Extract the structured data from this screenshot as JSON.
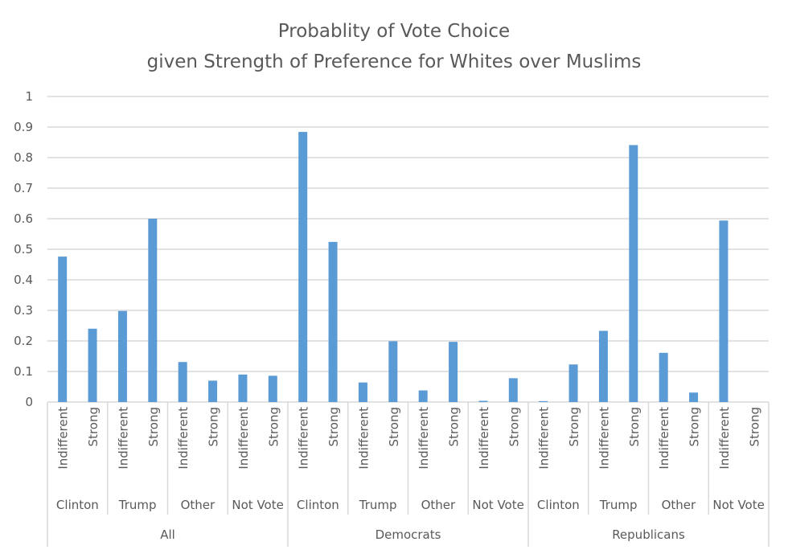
{
  "chart_data": {
    "type": "bar",
    "title": [
      "Probablity of Vote Choice",
      "given Strength of Preference for Whites over Muslims"
    ],
    "xlabel": "",
    "ylabel": "",
    "ylim": [
      0,
      1
    ],
    "yticks": [
      0,
      0.1,
      0.2,
      0.3,
      0.4,
      0.5,
      0.6,
      0.7,
      0.8,
      0.9,
      1
    ],
    "ytick_labels": [
      "0",
      "0.1",
      "0.2",
      "0.3",
      "0.4",
      "0.5",
      "0.6",
      "0.7",
      "0.8",
      "0.9",
      "1"
    ],
    "grid": true,
    "legend": "none",
    "bar_color": "#5b9bd5",
    "groups": [
      {
        "party": "All",
        "outcomes": [
          {
            "outcome": "Clinton",
            "values": [
              {
                "label": "Indifferent",
                "value": 0.476
              },
              {
                "label": "Strong",
                "value": 0.24
              }
            ]
          },
          {
            "outcome": "Trump",
            "values": [
              {
                "label": "Indifferent",
                "value": 0.298
              },
              {
                "label": "Strong",
                "value": 0.6
              }
            ]
          },
          {
            "outcome": "Other",
            "values": [
              {
                "label": "Indifferent",
                "value": 0.131
              },
              {
                "label": "Strong",
                "value": 0.07
              }
            ]
          },
          {
            "outcome": "Not Vote",
            "values": [
              {
                "label": "Indifferent",
                "value": 0.09
              },
              {
                "label": "Strong",
                "value": 0.086
              }
            ]
          }
        ]
      },
      {
        "party": "Democrats",
        "outcomes": [
          {
            "outcome": "Clinton",
            "values": [
              {
                "label": "Indifferent",
                "value": 0.884
              },
              {
                "label": "Strong",
                "value": 0.524
              }
            ]
          },
          {
            "outcome": "Trump",
            "values": [
              {
                "label": "Indifferent",
                "value": 0.064
              },
              {
                "label": "Strong",
                "value": 0.199
              }
            ]
          },
          {
            "outcome": "Other",
            "values": [
              {
                "label": "Indifferent",
                "value": 0.038
              },
              {
                "label": "Strong",
                "value": 0.197
              }
            ]
          },
          {
            "outcome": "Not Vote",
            "values": [
              {
                "label": "Indifferent",
                "value": 0.004
              },
              {
                "label": "Strong",
                "value": 0.078
              }
            ]
          }
        ]
      },
      {
        "party": "Republicans",
        "outcomes": [
          {
            "outcome": "Clinton",
            "values": [
              {
                "label": "Indifferent",
                "value": 0.003
              },
              {
                "label": "Strong",
                "value": 0.123
              }
            ]
          },
          {
            "outcome": "Trump",
            "values": [
              {
                "label": "Indifferent",
                "value": 0.233
              },
              {
                "label": "Strong",
                "value": 0.841
              }
            ]
          },
          {
            "outcome": "Other",
            "values": [
              {
                "label": "Indifferent",
                "value": 0.161
              },
              {
                "label": "Strong",
                "value": 0.031
              }
            ]
          },
          {
            "outcome": "Not Vote",
            "values": [
              {
                "label": "Indifferent",
                "value": 0.594
              },
              {
                "label": "Strong",
                "value": 0.0
              }
            ]
          }
        ]
      }
    ]
  }
}
